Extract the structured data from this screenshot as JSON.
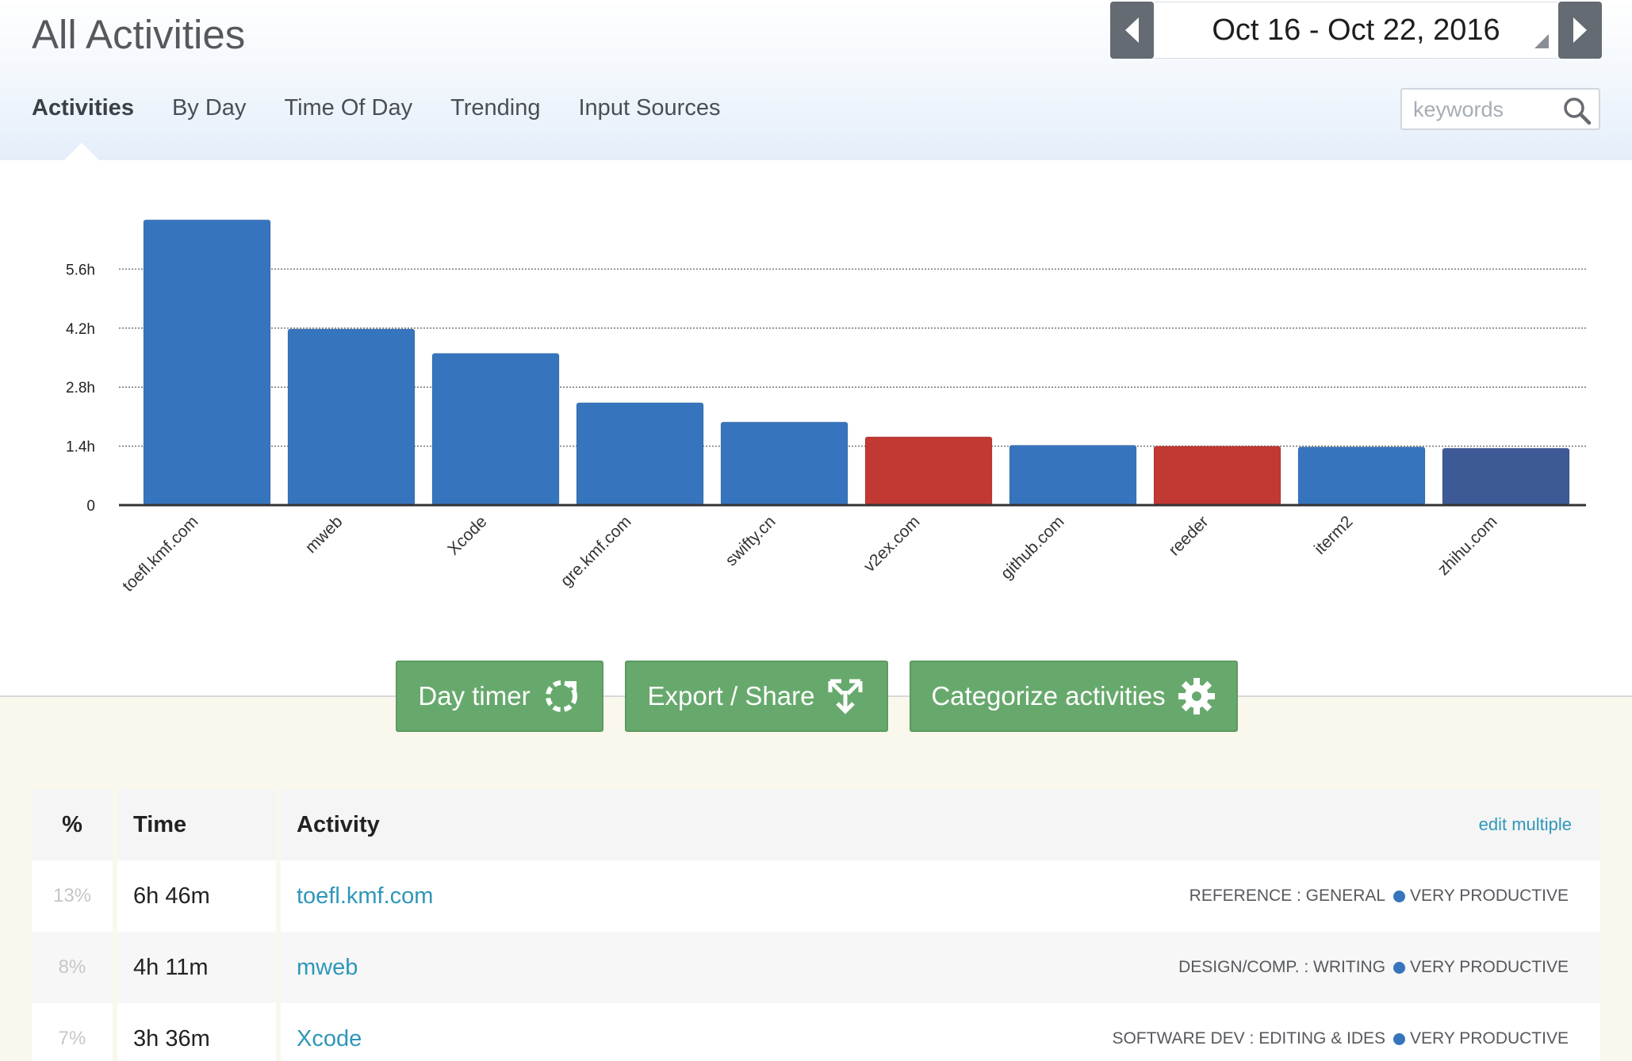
{
  "header": {
    "title": "All Activities",
    "date_range": "Oct 16 - Oct 22, 2016"
  },
  "tabs": [
    {
      "label": "Activities",
      "active": true
    },
    {
      "label": "By Day",
      "active": false
    },
    {
      "label": "Time Of Day",
      "active": false
    },
    {
      "label": "Trending",
      "active": false
    },
    {
      "label": "Input Sources",
      "active": false
    }
  ],
  "search": {
    "placeholder": "keywords",
    "value": ""
  },
  "chart_data": {
    "type": "bar",
    "categories": [
      "toefl.kmf.com",
      "mweb",
      "Xcode",
      "gre.kmf.com",
      "swifty.cn",
      "v2ex.com",
      "github.com",
      "reeder",
      "iterm2",
      "zhihu.com"
    ],
    "values": [
      6.77,
      4.18,
      3.6,
      2.43,
      1.97,
      1.62,
      1.42,
      1.4,
      1.38,
      1.35
    ],
    "bar_colors": [
      "#3675be",
      "#3675be",
      "#3675be",
      "#3675be",
      "#3675be",
      "#c23833",
      "#3675be",
      "#c23833",
      "#3675be",
      "#3d5a97"
    ],
    "yticks": [
      "0",
      "1.4h",
      "2.8h",
      "4.2h",
      "5.6h"
    ],
    "ytick_values": [
      0,
      1.4,
      2.8,
      4.2,
      5.6
    ],
    "ylim": [
      0,
      7.0
    ],
    "grid": true
  },
  "actions": [
    {
      "label": "Day timer",
      "icon": "refresh-icon"
    },
    {
      "label": "Export / Share",
      "icon": "share-icon"
    },
    {
      "label": "Categorize activities",
      "icon": "gear-icon"
    }
  ],
  "table": {
    "headers": {
      "pct": "%",
      "time": "Time",
      "activity": "Activity",
      "edit": "edit multiple"
    },
    "rows": [
      {
        "pct": "13%",
        "time": "6h 46m",
        "activity": "toefl.kmf.com",
        "category": "REFERENCE : GENERAL",
        "productivity": "VERY PRODUCTIVE"
      },
      {
        "pct": "8%",
        "time": "4h 11m",
        "activity": "mweb",
        "category": "DESIGN/COMP. : WRITING",
        "productivity": "VERY PRODUCTIVE"
      },
      {
        "pct": "7%",
        "time": "3h 36m",
        "activity": "Xcode",
        "category": "SOFTWARE DEV : EDITING & IDES",
        "productivity": "VERY PRODUCTIVE"
      }
    ]
  },
  "colors": {
    "productive_blue": "#3675be",
    "distracting_red": "#c23833",
    "button_green": "#67a96d",
    "link_blue": "#2e97b9"
  }
}
